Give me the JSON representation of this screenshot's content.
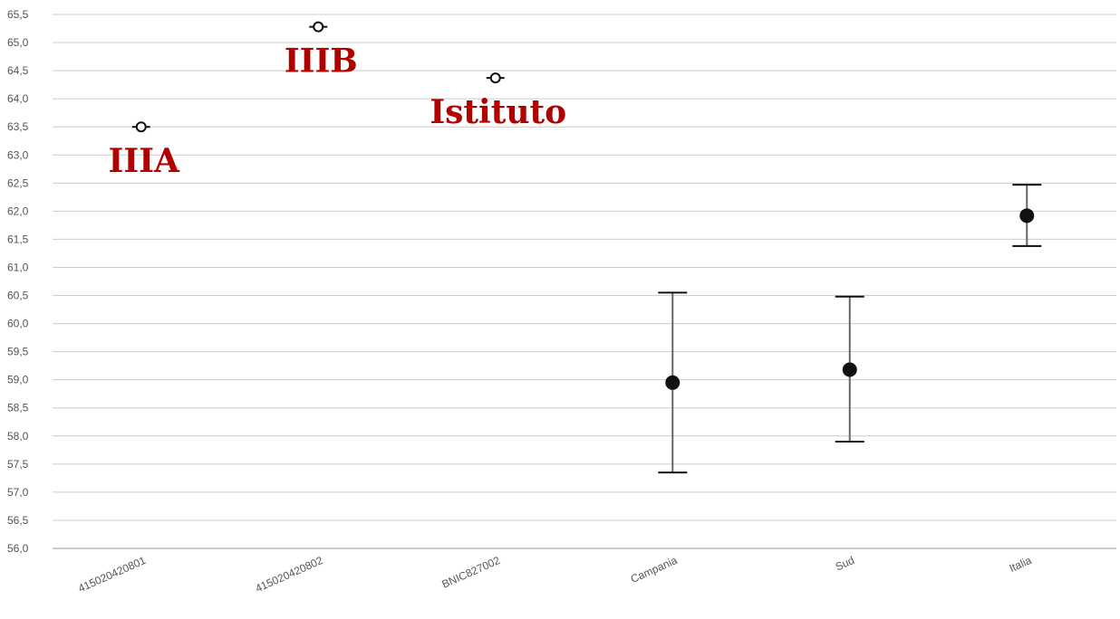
{
  "chart_data": {
    "type": "scatter",
    "title": "",
    "xlabel": "",
    "ylabel": "",
    "ylim": [
      56.0,
      65.5
    ],
    "ystep": 0.5,
    "decimal_separator": ",",
    "grid": true,
    "categories": [
      "415020420801",
      "415020420802",
      "BNIC827002",
      "Campania",
      "Sud",
      "Italia"
    ],
    "points": [
      {
        "category": "415020420801",
        "value": 63.5,
        "lower": 63.5,
        "upper": 63.5,
        "marker": "open"
      },
      {
        "category": "415020420802",
        "value": 65.28,
        "lower": 65.28,
        "upper": 65.28,
        "marker": "open"
      },
      {
        "category": "BNIC827002",
        "value": 64.37,
        "lower": 64.37,
        "upper": 64.37,
        "marker": "open"
      },
      {
        "category": "Campania",
        "value": 58.95,
        "lower": 57.35,
        "upper": 60.55,
        "marker": "filled"
      },
      {
        "category": "Sud",
        "value": 59.18,
        "lower": 57.9,
        "upper": 60.48,
        "marker": "filled"
      },
      {
        "category": "Italia",
        "value": 61.92,
        "lower": 61.38,
        "upper": 62.47,
        "marker": "filled"
      }
    ],
    "annotations": [
      {
        "text": "IIIA",
        "category": "415020420801"
      },
      {
        "text": "IIIB",
        "category": "415020420802"
      },
      {
        "text": "Istituto",
        "category": "BNIC827002"
      }
    ],
    "colors": {
      "grid": "#cccccc",
      "axis": "#999999",
      "error_bar": "#666666",
      "marker": "#111111",
      "annotation": "#b00000",
      "tick_text": "#555555"
    }
  }
}
